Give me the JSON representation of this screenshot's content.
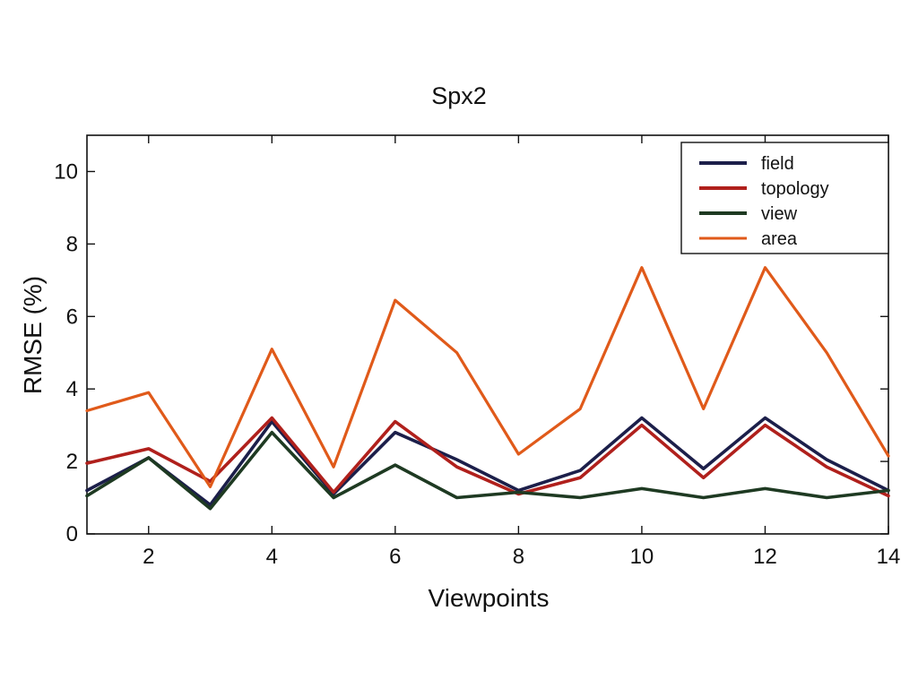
{
  "chart_data": {
    "type": "line",
    "title": "Spx2",
    "xlabel": "Viewpoints",
    "ylabel": "RMSE (%)",
    "xlim": [
      1,
      14
    ],
    "ylim": [
      0,
      11
    ],
    "x": [
      1,
      2,
      3,
      4,
      5,
      6,
      7,
      8,
      9,
      10,
      11,
      12,
      13,
      14
    ],
    "xticks": [
      2,
      4,
      6,
      8,
      10,
      12,
      14
    ],
    "yticks": [
      0,
      2,
      4,
      6,
      8,
      10
    ],
    "grid": false,
    "legend_position": "top-right",
    "series": [
      {
        "name": "field",
        "color": "#1c1f4a",
        "values": [
          1.2,
          2.1,
          0.8,
          3.1,
          1.1,
          2.8,
          2.05,
          1.2,
          1.75,
          3.2,
          1.8,
          3.2,
          2.05,
          1.2
        ]
      },
      {
        "name": "topology",
        "color": "#b0201c",
        "values": [
          1.95,
          2.35,
          1.45,
          3.2,
          1.15,
          3.1,
          1.85,
          1.1,
          1.55,
          3.0,
          1.55,
          3.0,
          1.85,
          1.05
        ]
      },
      {
        "name": "view",
        "color": "#1e3a22",
        "values": [
          1.05,
          2.1,
          0.7,
          2.8,
          1.0,
          1.9,
          1.0,
          1.15,
          1.0,
          1.25,
          1.0,
          1.25,
          1.0,
          1.2
        ]
      },
      {
        "name": "area",
        "color": "#e05a1a",
        "values": [
          3.4,
          3.9,
          1.3,
          5.1,
          1.85,
          6.45,
          5.0,
          2.2,
          3.45,
          7.35,
          3.45,
          7.35,
          5.0,
          2.15
        ]
      }
    ]
  }
}
